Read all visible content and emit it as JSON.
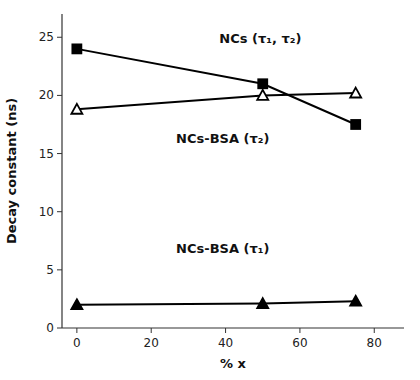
{
  "chart_data": {
    "type": "line",
    "xlabel": "% x",
    "ylabel": "Decay constant (ns)",
    "x": [
      0,
      50,
      75
    ],
    "series": [
      {
        "color": "#000000",
        "marker": "square",
        "values": [
          24.0,
          21.0,
          17.5
        ]
      },
      {
        "color": "#000000",
        "marker": "triangle-open",
        "values": [
          18.8,
          20.0,
          20.2
        ]
      },
      {
        "color": "#000000",
        "marker": "triangle",
        "values": [
          2.0,
          2.1,
          2.3
        ]
      }
    ],
    "annotations": [
      "NCs (τ₁, τ₂)",
      "NCs-BSA (τ₂)",
      "NCs-BSA (τ₁)"
    ],
    "xlim": [
      -4,
      88
    ],
    "ylim": [
      0,
      27
    ],
    "xticks": [
      0,
      20,
      40,
      60,
      80
    ],
    "yticks": [
      0,
      5,
      10,
      15,
      20,
      25
    ],
    "grid": false
  }
}
